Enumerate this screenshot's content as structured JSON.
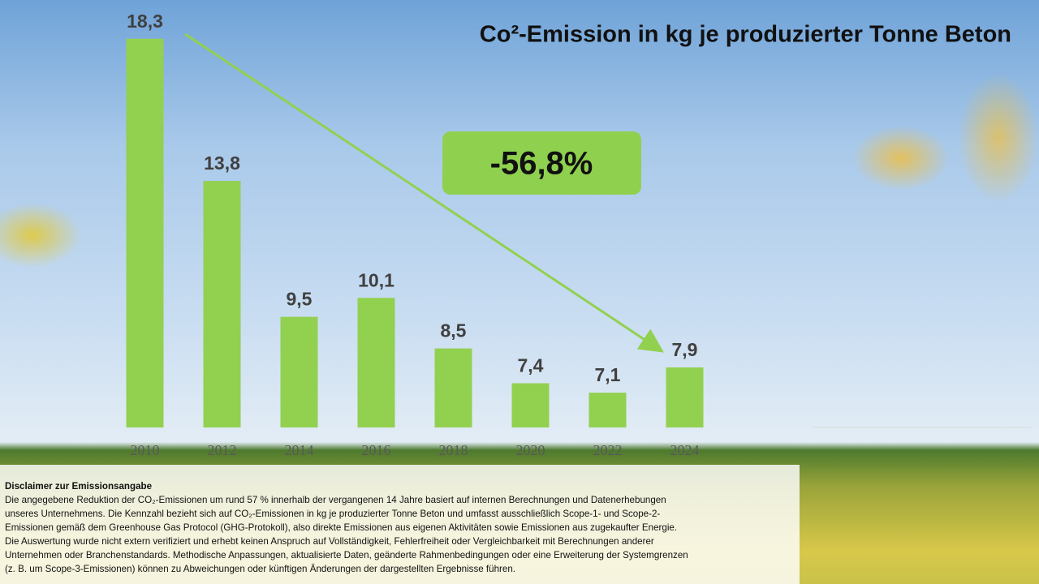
{
  "chart_data": {
    "type": "bar",
    "title": "Co²-Emission in kg je produzierter Tonne Beton",
    "categories": [
      "2010",
      "2012",
      "2014",
      "2016",
      "2018",
      "2020",
      "2022",
      "2024"
    ],
    "values": [
      18.3,
      13.8,
      9.5,
      10.1,
      8.5,
      7.4,
      7.1,
      7.9
    ],
    "value_labels": [
      "18,3",
      "13,8",
      "9,5",
      "10,1",
      "8,5",
      "7,4",
      "7,1",
      "7,9"
    ],
    "color": "#92d050",
    "ylim": [
      6,
      19.5
    ],
    "annotation": "-56,8%"
  },
  "disclaimer": {
    "title": "Disclaimer zur Emissionsangabe",
    "lines": [
      "Die angegebene Reduktion der CO₂-Emissionen um rund 57 % innerhalb der vergangenen 14 Jahre basiert auf internen Berechnungen und Datenerhebungen",
      "unseres Unternehmens. Die Kennzahl bezieht sich auf CO₂-Emissionen in kg je produzierter Tonne Beton und umfasst ausschließlich Scope-1- und Scope-2-",
      "Emissionen gemäß dem Greenhouse Gas Protocol (GHG-Protokoll), also direkte Emissionen aus eigenen Aktivitäten sowie Emissionen aus zugekaufter Energie.",
      "Die Auswertung wurde nicht extern verifiziert und erhebt keinen Anspruch auf Vollständigkeit, Fehlerfreiheit oder Vergleichbarkeit mit Berechnungen anderer",
      "Unternehmen oder Branchenstandards. Methodische Anpassungen, aktualisierte Daten, geänderte Rahmenbedingungen oder eine Erweiterung der Systemgrenzen",
      "(z. B. um Scope-3-Emissionen) können zu Abweichungen oder künftigen Änderungen der dargestellten Ergebnisse führen."
    ]
  }
}
